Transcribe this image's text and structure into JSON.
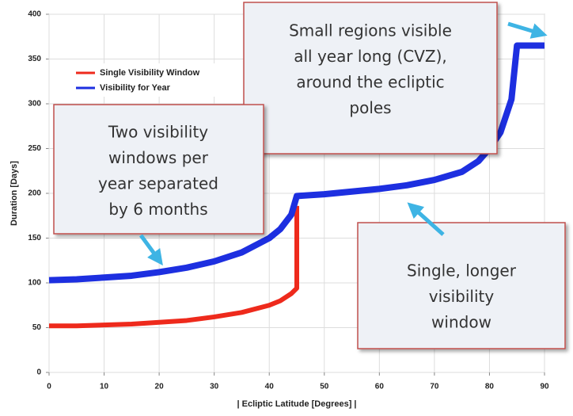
{
  "chart_data": {
    "type": "line",
    "x_label": "| Ecliptic Latitude [Degrees] |",
    "y_label": "Duration [Days]",
    "xlim": [
      0,
      90
    ],
    "xticks": [
      0,
      10,
      20,
      30,
      40,
      50,
      60,
      70,
      80,
      90
    ],
    "ylim": [
      0,
      400
    ],
    "yticks": [
      0,
      50,
      100,
      150,
      200,
      250,
      300,
      350,
      400
    ],
    "grid": true,
    "legend": "upper left",
    "series": [
      {
        "name": "Single Visibility Window",
        "color": "#ee2a1c",
        "width": 6,
        "x": [
          0,
          5,
          10,
          15,
          20,
          25,
          30,
          35,
          40,
          42,
          44,
          45,
          45
        ],
        "values": [
          52,
          52,
          53,
          54,
          56,
          58,
          62,
          67,
          75,
          80,
          88,
          94,
          186
        ]
      },
      {
        "name": "Visibility for Year",
        "color": "#1d2fe0",
        "width": 8,
        "x": [
          0,
          5,
          10,
          15,
          20,
          25,
          30,
          35,
          40,
          42,
          44,
          45,
          50,
          55,
          60,
          65,
          70,
          75,
          78,
          80,
          82,
          84,
          85,
          90
        ],
        "values": [
          103,
          104,
          106,
          108,
          112,
          117,
          124,
          134,
          150,
          160,
          176,
          197,
          199,
          202,
          205,
          209,
          215,
          224,
          236,
          250,
          268,
          305,
          365,
          365
        ]
      }
    ],
    "annotations": [
      {
        "lines": [
          "Small regions visible",
          "all year long (CVZ),",
          "around the ecliptic",
          "poles"
        ]
      },
      {
        "lines": [
          "Two visibility",
          "windows per",
          "year separated",
          "by 6 months"
        ]
      },
      {
        "lines": [
          "Single, longer",
          "visibility",
          "window"
        ]
      }
    ]
  }
}
